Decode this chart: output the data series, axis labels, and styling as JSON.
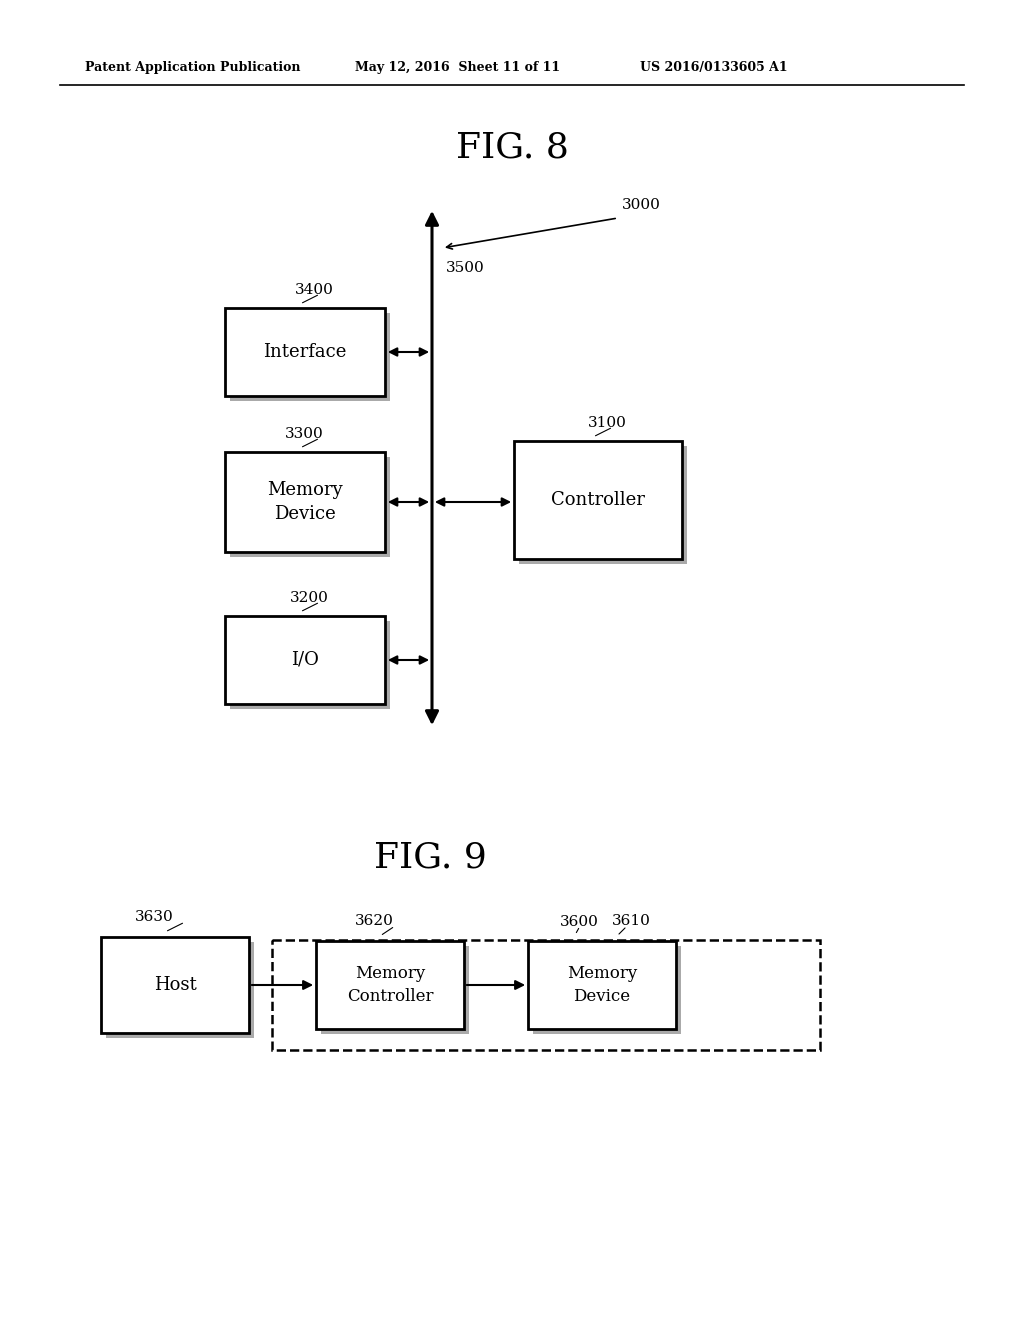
{
  "bg_color": "#ffffff",
  "header_left": "Patent Application Publication",
  "header_mid": "May 12, 2016  Sheet 11 of 11",
  "header_right": "US 2016/0133605 A1",
  "fig8_title": "FIG. 8",
  "fig8_label_3000": "3000",
  "fig8_label_3500": "3500",
  "fig8_label_3400": "3400",
  "fig8_label_3300": "3300",
  "fig8_label_3200": "3200",
  "fig8_label_3100": "3100",
  "fig8_box_interface_text": "Interface",
  "fig8_box_memory_device_text": "Memory\nDevice",
  "fig8_box_io_text": "I/O",
  "fig8_box_controller_text": "Controller",
  "fig9_title": "FIG. 9",
  "fig9_label_3630": "3630",
  "fig9_label_3620": "3620",
  "fig9_label_3600": "3600",
  "fig9_label_3610": "3610",
  "fig9_box_host_text": "Host",
  "fig9_box_mem_ctrl_text": "Memory\nController",
  "fig9_box_mem_dev_text": "Memory\nDevice"
}
